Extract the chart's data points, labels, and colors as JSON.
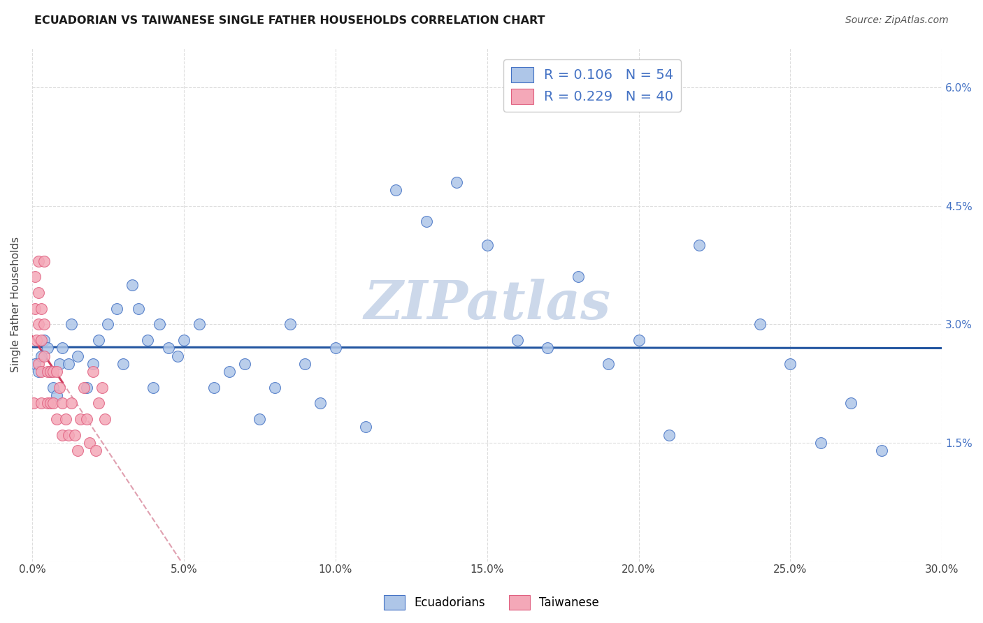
{
  "title": "ECUADORIAN VS TAIWANESE SINGLE FATHER HOUSEHOLDS CORRELATION CHART",
  "source": "Source: ZipAtlas.com",
  "ylabel": "Single Father Households",
  "xlim": [
    0.0,
    0.3
  ],
  "ylim": [
    0.0,
    0.065
  ],
  "xticks": [
    0.0,
    0.05,
    0.1,
    0.15,
    0.2,
    0.25,
    0.3
  ],
  "yticks": [
    0.0,
    0.015,
    0.03,
    0.045,
    0.06
  ],
  "ytick_labels_right": [
    "",
    "1.5%",
    "3.0%",
    "4.5%",
    "6.0%"
  ],
  "xtick_labels": [
    "0.0%",
    "5.0%",
    "10.0%",
    "15.0%",
    "20.0%",
    "25.0%",
    "30.0%"
  ],
  "scatter_color_blue": "#aec6e8",
  "scatter_color_pink": "#f4a8b8",
  "edge_color_blue": "#4472c4",
  "edge_color_pink": "#e06080",
  "line_color_blue": "#2255a0",
  "line_color_pink": "#d04060",
  "diagonal_color": "#cccccc",
  "watermark": "ZIPatlas",
  "watermark_color": "#ccd8ea",
  "background_color": "#ffffff",
  "grid_color": "#dddddd",
  "ecuadorians_x": [
    0.001,
    0.002,
    0.003,
    0.004,
    0.005,
    0.006,
    0.007,
    0.008,
    0.009,
    0.01,
    0.012,
    0.013,
    0.015,
    0.018,
    0.02,
    0.022,
    0.025,
    0.028,
    0.03,
    0.033,
    0.035,
    0.038,
    0.04,
    0.042,
    0.045,
    0.048,
    0.05,
    0.055,
    0.06,
    0.065,
    0.07,
    0.075,
    0.08,
    0.085,
    0.09,
    0.095,
    0.1,
    0.11,
    0.12,
    0.13,
    0.14,
    0.15,
    0.16,
    0.17,
    0.18,
    0.19,
    0.2,
    0.21,
    0.22,
    0.24,
    0.25,
    0.26,
    0.27,
    0.28
  ],
  "ecuadorians_y": [
    0.025,
    0.024,
    0.026,
    0.028,
    0.027,
    0.024,
    0.022,
    0.021,
    0.025,
    0.027,
    0.025,
    0.03,
    0.026,
    0.022,
    0.025,
    0.028,
    0.03,
    0.032,
    0.025,
    0.035,
    0.032,
    0.028,
    0.022,
    0.03,
    0.027,
    0.026,
    0.028,
    0.03,
    0.022,
    0.024,
    0.025,
    0.018,
    0.022,
    0.03,
    0.025,
    0.02,
    0.027,
    0.017,
    0.047,
    0.043,
    0.048,
    0.04,
    0.028,
    0.027,
    0.036,
    0.025,
    0.028,
    0.016,
    0.04,
    0.03,
    0.025,
    0.015,
    0.02,
    0.014
  ],
  "taiwanese_x": [
    0.0005,
    0.001,
    0.001,
    0.0015,
    0.002,
    0.002,
    0.002,
    0.002,
    0.003,
    0.003,
    0.003,
    0.003,
    0.004,
    0.004,
    0.004,
    0.005,
    0.005,
    0.006,
    0.006,
    0.007,
    0.007,
    0.008,
    0.008,
    0.009,
    0.01,
    0.01,
    0.011,
    0.012,
    0.013,
    0.014,
    0.015,
    0.016,
    0.017,
    0.018,
    0.019,
    0.02,
    0.021,
    0.022,
    0.023,
    0.024
  ],
  "taiwanese_y": [
    0.02,
    0.036,
    0.032,
    0.028,
    0.038,
    0.034,
    0.03,
    0.025,
    0.032,
    0.028,
    0.024,
    0.02,
    0.038,
    0.03,
    0.026,
    0.024,
    0.02,
    0.024,
    0.02,
    0.024,
    0.02,
    0.024,
    0.018,
    0.022,
    0.02,
    0.016,
    0.018,
    0.016,
    0.02,
    0.016,
    0.014,
    0.018,
    0.022,
    0.018,
    0.015,
    0.024,
    0.014,
    0.02,
    0.022,
    0.018
  ]
}
